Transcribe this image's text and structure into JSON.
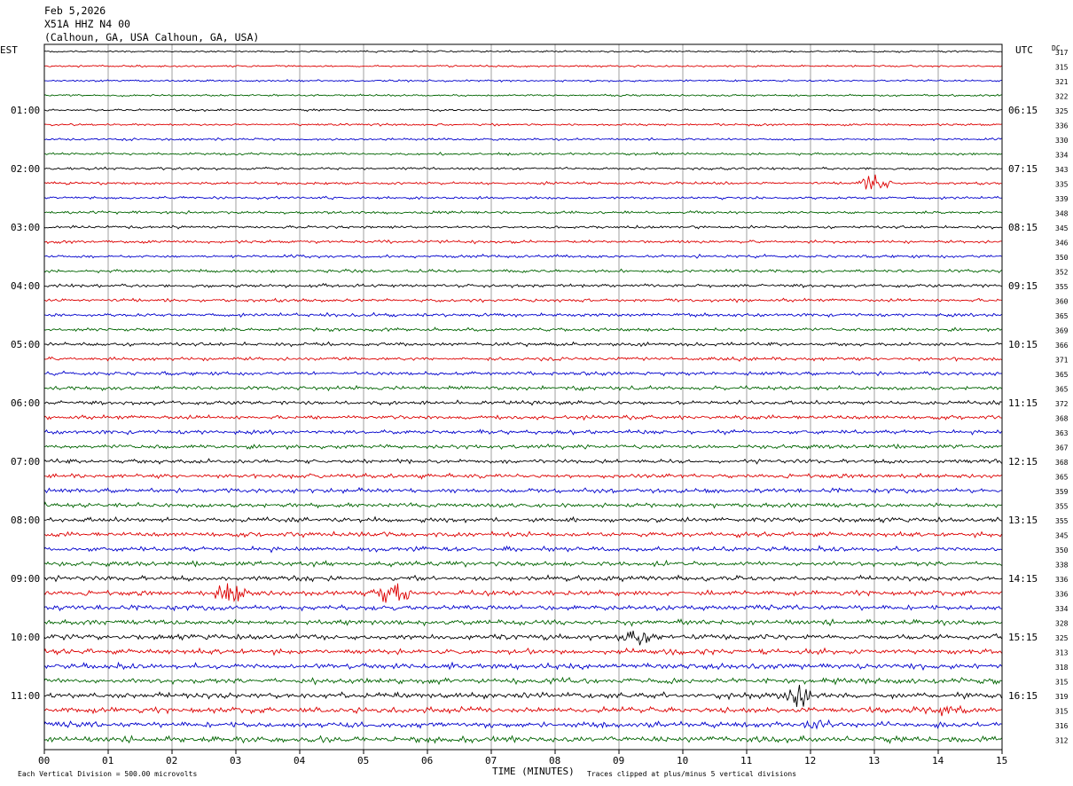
{
  "header": {
    "date": "Feb 5,2026",
    "station": "X51A HHZ N4 00",
    "location": "(Calhoun, GA, USA Calhoun, GA, USA)"
  },
  "chart_data": {
    "type": "line",
    "left_axis_label": "EST",
    "right_axis_label": "UTC",
    "dc_label": "DC",
    "xlabel": "TIME (MINUTES)",
    "x_ticks": [
      "00",
      "01",
      "02",
      "03",
      "04",
      "05",
      "06",
      "07",
      "08",
      "09",
      "10",
      "11",
      "12",
      "13",
      "14",
      "15"
    ],
    "xlim": [
      0,
      15
    ],
    "est_labels": [
      "01:00",
      "02:00",
      "03:00",
      "04:00",
      "05:00",
      "06:00",
      "07:00",
      "08:00",
      "09:00",
      "10:00",
      "11:00"
    ],
    "utc_labels": [
      "06:15",
      "07:15",
      "08:15",
      "09:15",
      "10:15",
      "11:15",
      "12:15",
      "13:15",
      "14:15",
      "15:15",
      "16:15"
    ],
    "dc_values": [
      "317",
      "315",
      "321",
      "322",
      "325",
      "336",
      "330",
      "334",
      "343",
      "335",
      "339",
      "348",
      "345",
      "346",
      "350",
      "352",
      "355",
      "360",
      "365",
      "369",
      "366",
      "371",
      "365",
      "365",
      "372",
      "368",
      "363",
      "367",
      "368",
      "365",
      "359",
      "355",
      "355",
      "345",
      "350",
      "338",
      "336",
      "336",
      "334",
      "328",
      "325",
      "313",
      "318",
      "315",
      "319",
      "315",
      "316",
      "312"
    ],
    "trace_colors": [
      "#000000",
      "#dd0000",
      "#0000cc",
      "#006400"
    ],
    "events": [
      {
        "trace": 9,
        "minute": 13.0,
        "amplitude": 3
      },
      {
        "trace": 37,
        "minute": 2.95,
        "amplitude": 5
      },
      {
        "trace": 37,
        "minute": 5.45,
        "amplitude": 5
      },
      {
        "trace": 40,
        "minute": 9.3,
        "amplitude": 2
      },
      {
        "trace": 44,
        "minute": 11.8,
        "amplitude": 4
      },
      {
        "trace": 45,
        "minute": 14.1,
        "amplitude": 1.5
      },
      {
        "trace": 46,
        "minute": 12.2,
        "amplitude": 1.5
      }
    ],
    "footer_left": "Each Vertical Division =  500.00 microvolts",
    "footer_right": "Traces clipped at plus/minus 5 vertical divisions"
  }
}
